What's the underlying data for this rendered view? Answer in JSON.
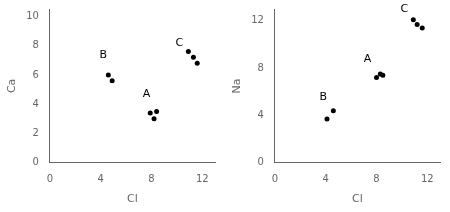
{
  "chart_data": [
    {
      "type": "scatter",
      "xlabel": "Cl",
      "ylabel": "Ca",
      "xlim": [
        0,
        13
      ],
      "ylim": [
        0,
        10.5
      ],
      "xticks": [
        0,
        4,
        8,
        12
      ],
      "yticks": [
        0,
        2,
        4,
        6,
        8,
        10
      ],
      "grid": false,
      "series": [
        {
          "x": [
            7.9,
            8.2,
            8.4
          ],
          "values": [
            3.4,
            3.0,
            3.5
          ],
          "color": "#000000"
        },
        {
          "x": [
            4.6,
            4.9
          ],
          "values": [
            6.0,
            5.6
          ],
          "color": "#000000"
        },
        {
          "x": [
            10.9,
            11.3,
            11.6
          ],
          "values": [
            7.6,
            7.2,
            6.8
          ],
          "color": "#000000"
        }
      ],
      "annotations": [
        {
          "text": "A",
          "x": 7.6,
          "y": 4.3,
          "color": "#000000"
        },
        {
          "text": "B",
          "x": 4.2,
          "y": 7.0,
          "color": "#000000"
        },
        {
          "text": "C",
          "x": 10.2,
          "y": 7.8,
          "color": "#000000"
        }
      ]
    },
    {
      "type": "scatter",
      "xlabel": "Cl",
      "ylabel": "Na",
      "xlim": [
        0,
        13
      ],
      "ylim": [
        0,
        13
      ],
      "xticks": [
        0,
        4,
        8,
        12
      ],
      "yticks": [
        0,
        4,
        8,
        12
      ],
      "grid": false,
      "series": [
        {
          "x": [
            8.0,
            8.3,
            8.5
          ],
          "values": [
            7.2,
            7.5,
            7.4
          ],
          "color": "#000000"
        },
        {
          "x": [
            4.1,
            4.6
          ],
          "values": [
            3.7,
            4.4
          ],
          "color": "#000000"
        },
        {
          "x": [
            10.9,
            11.2,
            11.6
          ],
          "values": [
            12.1,
            11.7,
            11.4
          ],
          "color": "#000000"
        }
      ],
      "annotations": [
        {
          "text": "A",
          "x": 7.3,
          "y": 8.3,
          "color": "#000000"
        },
        {
          "text": "B",
          "x": 3.8,
          "y": 5.1,
          "color": "#000000"
        },
        {
          "text": "C",
          "x": 10.2,
          "y": 12.5,
          "color": "#000000"
        }
      ]
    }
  ]
}
